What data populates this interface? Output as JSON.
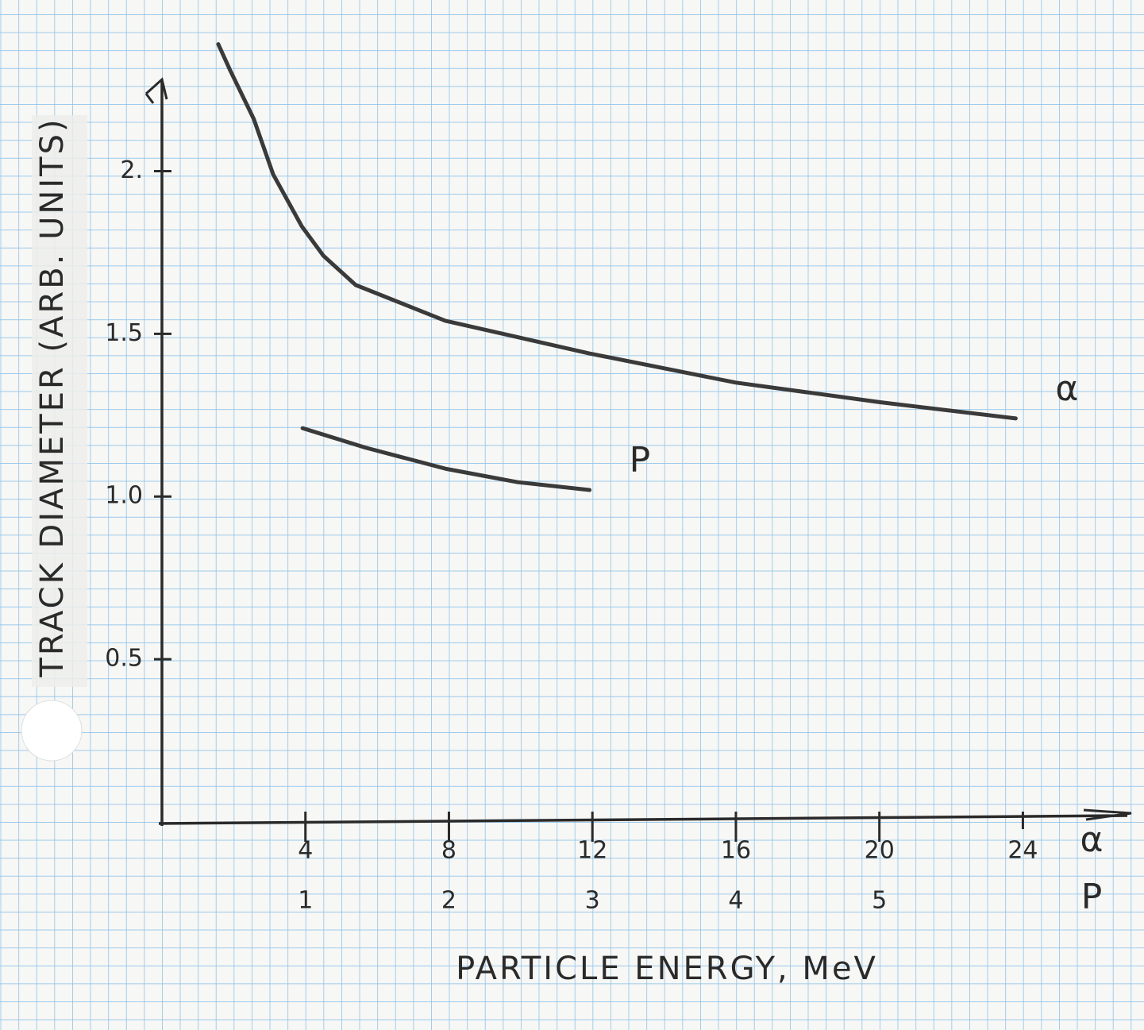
{
  "chart_data": {
    "type": "line",
    "x_label": "PARTICLE ENERGY, MeV",
    "y_label": "TRACK DIAMETER (ARB. UNITS)",
    "xlim": [
      0,
      27
    ],
    "x2lim": [
      0,
      6.75
    ],
    "ylim": [
      0,
      2.25
    ],
    "xticks": [
      4,
      8,
      12,
      16,
      20,
      24
    ],
    "x2ticks": [
      1,
      2,
      3,
      4,
      5
    ],
    "yticks": [
      {
        "value": 0.5,
        "label": "0.5"
      },
      {
        "value": 1,
        "label": "1.0"
      },
      {
        "value": 1.5,
        "label": "1.5"
      },
      {
        "value": 2,
        "label": "2."
      }
    ],
    "series": [
      {
        "name": "α",
        "color": "#3a3a3a",
        "axis": "x",
        "x": [
          1.57,
          1.9,
          2.56,
          3.1,
          3.9,
          4.5,
          5.4,
          7.9,
          11.9,
          16.0,
          20.0,
          23.8
        ],
        "values": [
          2.39,
          2.31,
          2.16,
          1.99,
          1.83,
          1.74,
          1.65,
          1.54,
          1.44,
          1.35,
          1.29,
          1.24
        ]
      },
      {
        "name": "P",
        "color": "#3a3a3a",
        "axis": "x2",
        "x": [
          0.98,
          1.42,
          1.98,
          2.48,
          2.98
        ],
        "values": [
          1.21,
          1.15,
          1.085,
          1.044,
          1.02
        ]
      }
    ]
  }
}
